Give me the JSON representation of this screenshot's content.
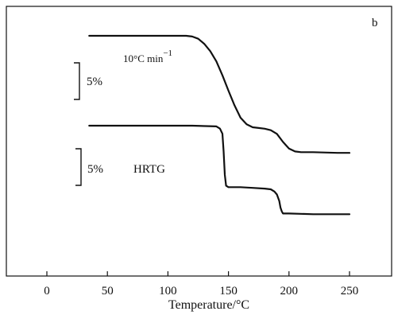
{
  "chart_data": {
    "type": "line",
    "panel_letter": "b",
    "xlabel": "Temperature/°C",
    "ylabel": "",
    "xlim": [
      -35,
      285
    ],
    "x_ticks": [
      0,
      50,
      100,
      150,
      200,
      250
    ],
    "grid": false,
    "series": [
      {
        "name": "10°C min",
        "label_superscript": "−1",
        "x": [
          35,
          60,
          80,
          100,
          115,
          120,
          125,
          130,
          135,
          140,
          145,
          150,
          155,
          160,
          165,
          170,
          175,
          180,
          185,
          190,
          195,
          200,
          205,
          210,
          220,
          240,
          250
        ],
        "y": [
          100,
          100,
          100,
          100,
          100,
          99.9,
          99.6,
          98.9,
          97.9,
          96.5,
          94.6,
          92.5,
          90.5,
          88.8,
          87.9,
          87.5,
          87.4,
          87.3,
          87.1,
          86.6,
          85.5,
          84.6,
          84.2,
          84.1,
          84.1,
          84.0,
          84.0
        ]
      },
      {
        "name": "HRTG",
        "x": [
          35,
          50,
          80,
          100,
          120,
          140,
          143,
          145,
          146,
          147,
          148,
          150,
          160,
          170,
          180,
          185,
          188,
          190,
          192,
          193,
          194,
          195,
          197,
          200,
          220,
          240,
          250
        ],
        "y": [
          100,
          100,
          100,
          100,
          100,
          99.9,
          99.6,
          98.9,
          96.5,
          93.3,
          91.8,
          91.6,
          91.6,
          91.5,
          91.4,
          91.3,
          91.0,
          90.6,
          89.7,
          88.8,
          88.3,
          88.0,
          88.0,
          88.0,
          87.9,
          87.9,
          87.9
        ]
      }
    ],
    "scale_bars": [
      {
        "label": "5%"
      },
      {
        "label": "5%"
      }
    ]
  }
}
